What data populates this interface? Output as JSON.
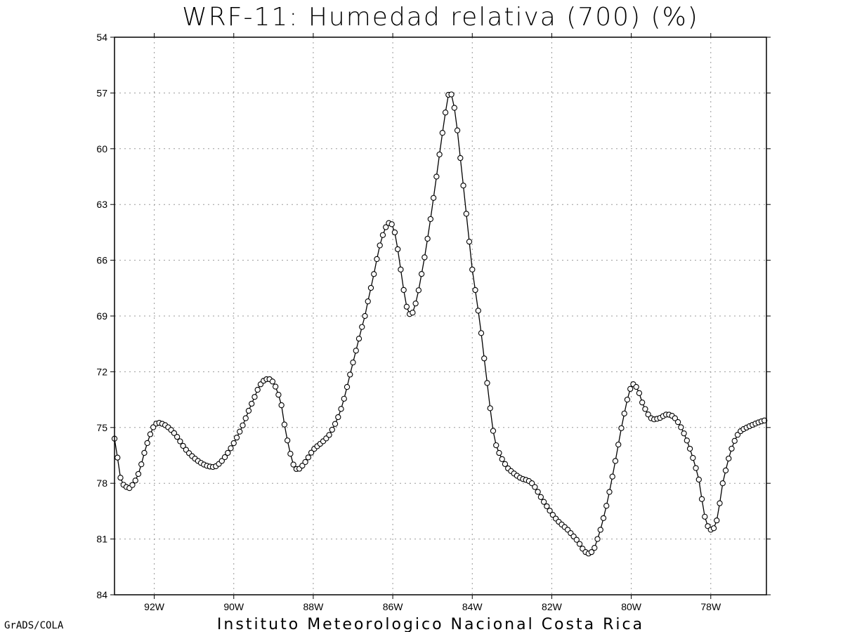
{
  "chart_data": {
    "type": "line",
    "title": "WRF-11: Humedad relativa (700) (%)",
    "footer": "Instituto Meteorologico Nacional Costa Rica",
    "credit": "GrADS/COLA",
    "xlabel": "",
    "ylabel": "",
    "xlim": [
      -93.0,
      -76.6
    ],
    "ylim": [
      54,
      84
    ],
    "y_inverted": true,
    "grid": true,
    "legend": "none",
    "x_ticks": [
      {
        "value": -92,
        "label": "92W"
      },
      {
        "value": -90,
        "label": "90W"
      },
      {
        "value": -88,
        "label": "88W"
      },
      {
        "value": -86,
        "label": "86W"
      },
      {
        "value": -84,
        "label": "84W"
      },
      {
        "value": -82,
        "label": "82W"
      },
      {
        "value": -80,
        "label": "80W"
      },
      {
        "value": -78,
        "label": "78W"
      }
    ],
    "y_ticks": [
      54,
      57,
      60,
      63,
      66,
      69,
      72,
      75,
      78,
      81,
      84
    ],
    "series": [
      {
        "color": "#000000",
        "marker": "open-circle",
        "anchors": [
          [
            -93.0,
            75.6
          ],
          [
            -92.85,
            77.7
          ],
          [
            -92.7,
            78.2
          ],
          [
            -92.6,
            78.2
          ],
          [
            -92.4,
            77.5
          ],
          [
            -92.2,
            76.0
          ],
          [
            -92.0,
            74.9
          ],
          [
            -91.8,
            74.8
          ],
          [
            -91.5,
            75.3
          ],
          [
            -91.2,
            76.2
          ],
          [
            -90.9,
            76.8
          ],
          [
            -90.6,
            77.1
          ],
          [
            -90.4,
            77.0
          ],
          [
            -90.1,
            76.2
          ],
          [
            -89.8,
            75.0
          ],
          [
            -89.5,
            73.5
          ],
          [
            -89.3,
            72.6
          ],
          [
            -89.1,
            72.4
          ],
          [
            -88.95,
            72.8
          ],
          [
            -88.8,
            73.8
          ],
          [
            -88.7,
            75.2
          ],
          [
            -88.55,
            76.6
          ],
          [
            -88.45,
            77.2
          ],
          [
            -88.3,
            77.1
          ],
          [
            -88.0,
            76.2
          ],
          [
            -87.6,
            75.4
          ],
          [
            -87.3,
            74.0
          ],
          [
            -87.0,
            71.5
          ],
          [
            -86.7,
            69.0
          ],
          [
            -86.5,
            67.0
          ],
          [
            -86.3,
            65.0
          ],
          [
            -86.1,
            64.0
          ],
          [
            -85.95,
            64.5
          ],
          [
            -85.8,
            66.5
          ],
          [
            -85.65,
            68.5
          ],
          [
            -85.55,
            68.9
          ],
          [
            -85.45,
            68.5
          ],
          [
            -85.3,
            67.0
          ],
          [
            -85.1,
            64.5
          ],
          [
            -84.9,
            61.5
          ],
          [
            -84.7,
            58.5
          ],
          [
            -84.58,
            57.0
          ],
          [
            -84.45,
            57.8
          ],
          [
            -84.3,
            60.5
          ],
          [
            -84.15,
            63.5
          ],
          [
            -84.0,
            66.5
          ],
          [
            -83.8,
            69.5
          ],
          [
            -83.6,
            73.0
          ],
          [
            -83.45,
            75.5
          ],
          [
            -83.3,
            76.5
          ],
          [
            -83.1,
            77.2
          ],
          [
            -82.8,
            77.7
          ],
          [
            -82.5,
            78.0
          ],
          [
            -82.2,
            79.0
          ],
          [
            -81.9,
            79.9
          ],
          [
            -81.6,
            80.5
          ],
          [
            -81.35,
            81.1
          ],
          [
            -81.15,
            81.7
          ],
          [
            -81.0,
            81.7
          ],
          [
            -80.85,
            81.0
          ],
          [
            -80.6,
            79.0
          ],
          [
            -80.4,
            76.8
          ],
          [
            -80.2,
            74.5
          ],
          [
            -80.0,
            72.8
          ],
          [
            -79.85,
            72.9
          ],
          [
            -79.7,
            73.8
          ],
          [
            -79.5,
            74.5
          ],
          [
            -79.3,
            74.5
          ],
          [
            -79.1,
            74.3
          ],
          [
            -78.9,
            74.5
          ],
          [
            -78.7,
            75.2
          ],
          [
            -78.5,
            76.3
          ],
          [
            -78.3,
            77.8
          ],
          [
            -78.15,
            79.8
          ],
          [
            -78.0,
            80.5
          ],
          [
            -77.85,
            80.0
          ],
          [
            -77.7,
            78.0
          ],
          [
            -77.5,
            76.3
          ],
          [
            -77.3,
            75.3
          ],
          [
            -77.0,
            74.9
          ],
          [
            -76.6,
            74.6
          ]
        ],
        "point_spacing_lon": 0.075
      }
    ]
  }
}
